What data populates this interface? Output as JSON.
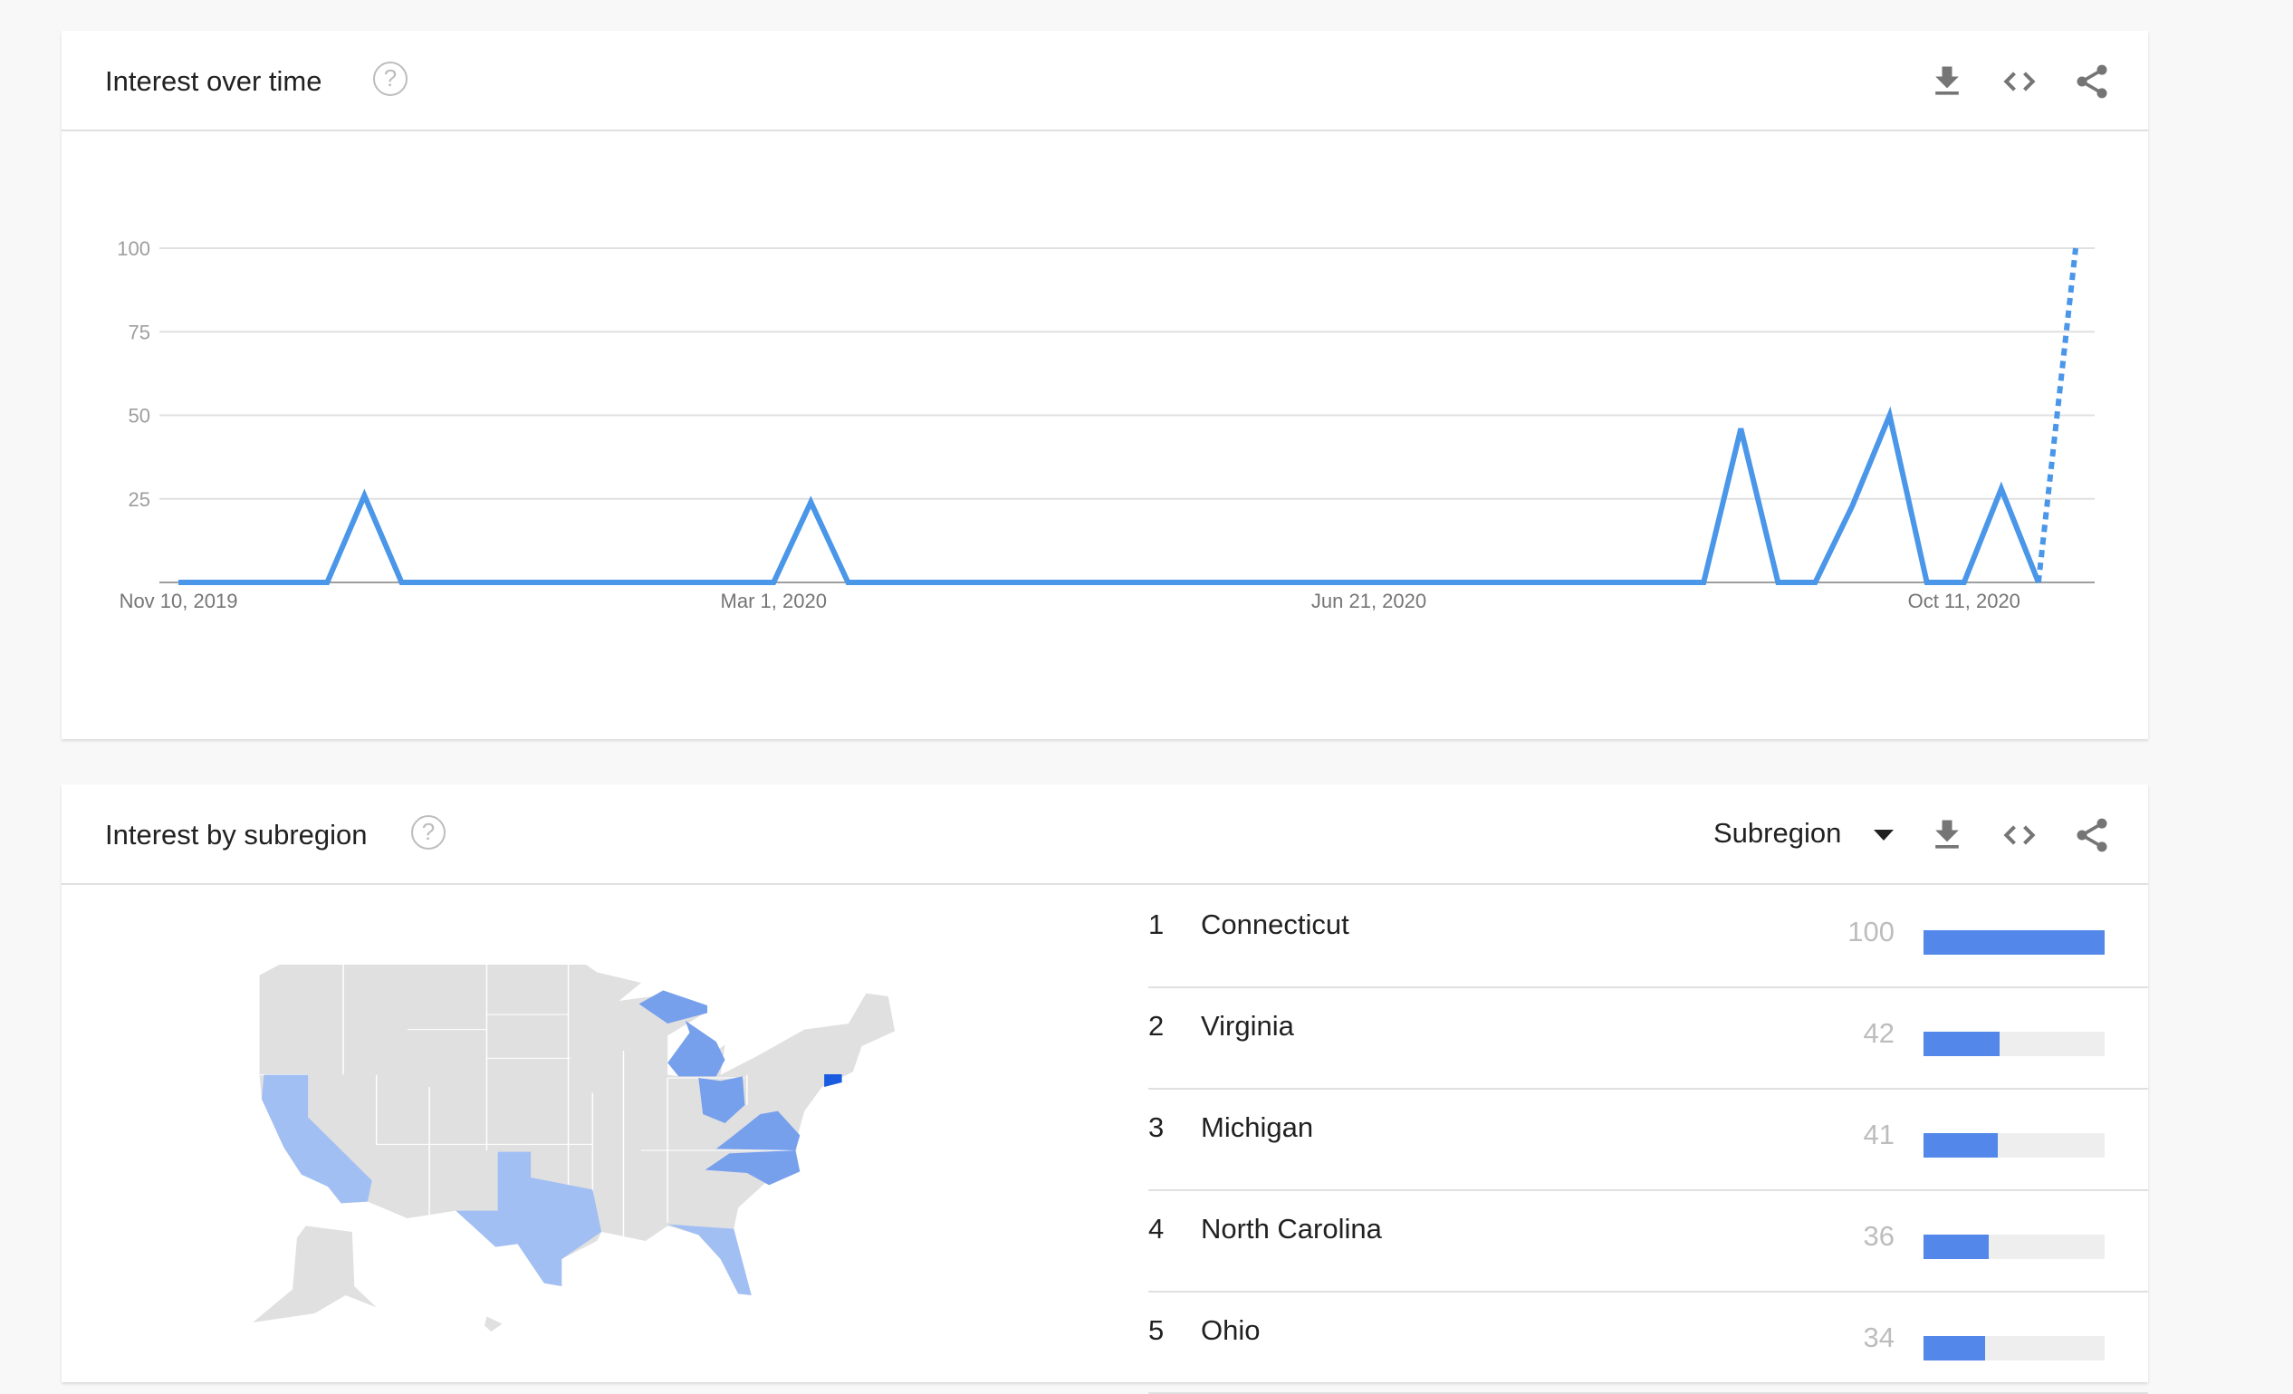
{
  "interest_over_time": {
    "title": "Interest over time",
    "help": "?",
    "icons": [
      "download-icon",
      "embed-code-icon",
      "share-icon"
    ]
  },
  "interest_by_subregion": {
    "title": "Interest by subregion",
    "help": "?",
    "dropdown": {
      "selected": "Subregion"
    },
    "icons": [
      "download-icon",
      "embed-code-icon",
      "share-icon"
    ],
    "rows": [
      {
        "rank": "1",
        "name": "Connecticut",
        "value": 100
      },
      {
        "rank": "2",
        "name": "Virginia",
        "value": 42
      },
      {
        "rank": "3",
        "name": "Michigan",
        "value": 41
      },
      {
        "rank": "4",
        "name": "North Carolina",
        "value": 36
      },
      {
        "rank": "5",
        "name": "Ohio",
        "value": 34
      }
    ],
    "map": {
      "colors": {
        "none": "#e0e0e0",
        "low": "#a1bff3",
        "mid": "#77a0ec",
        "high": "#1a5ce0"
      },
      "highlighted": {
        "Connecticut": "high",
        "Virginia": "mid",
        "Michigan": "mid",
        "North Carolina": "mid",
        "Ohio": "mid",
        "California": "low",
        "Texas": "low",
        "Florida": "low"
      }
    }
  },
  "colors": {
    "line": "#4a96e8",
    "bar": "#5388ea",
    "bar_track": "#eeeeee"
  },
  "chart_data": {
    "type": "line",
    "ylim": [
      0,
      100
    ],
    "yticks": [
      "25",
      "50",
      "75",
      "100"
    ],
    "xtick_labels": [
      "Nov 10, 2019",
      "Mar 1, 2020",
      "Jun 21, 2020",
      "Oct 11, 2020"
    ],
    "grid": true,
    "x": [
      "2019-11-10",
      "2019-11-17",
      "2019-11-24",
      "2019-12-01",
      "2019-12-08",
      "2019-12-15",
      "2019-12-22",
      "2019-12-29",
      "2020-01-05",
      "2020-01-12",
      "2020-01-19",
      "2020-01-26",
      "2020-02-02",
      "2020-02-09",
      "2020-02-16",
      "2020-02-23",
      "2020-03-01",
      "2020-03-08",
      "2020-03-15",
      "2020-03-22",
      "2020-03-29",
      "2020-04-05",
      "2020-04-12",
      "2020-04-19",
      "2020-04-26",
      "2020-05-03",
      "2020-05-10",
      "2020-05-17",
      "2020-05-24",
      "2020-05-31",
      "2020-06-07",
      "2020-06-14",
      "2020-06-21",
      "2020-06-28",
      "2020-07-05",
      "2020-07-12",
      "2020-07-19",
      "2020-07-26",
      "2020-08-02",
      "2020-08-09",
      "2020-08-16",
      "2020-08-23",
      "2020-08-30",
      "2020-09-06",
      "2020-09-13",
      "2020-09-20",
      "2020-09-27",
      "2020-10-04",
      "2020-10-11",
      "2020-10-18",
      "2020-10-25",
      "2020-11-01"
    ],
    "values": [
      0,
      0,
      0,
      0,
      0,
      26,
      0,
      0,
      0,
      0,
      0,
      0,
      0,
      0,
      0,
      0,
      0,
      24,
      0,
      0,
      0,
      0,
      0,
      0,
      0,
      0,
      0,
      0,
      0,
      0,
      0,
      0,
      0,
      0,
      0,
      0,
      0,
      0,
      0,
      0,
      0,
      0,
      46,
      0,
      0,
      23,
      50,
      0,
      0,
      28,
      0,
      100
    ],
    "partial_last_point": true
  }
}
